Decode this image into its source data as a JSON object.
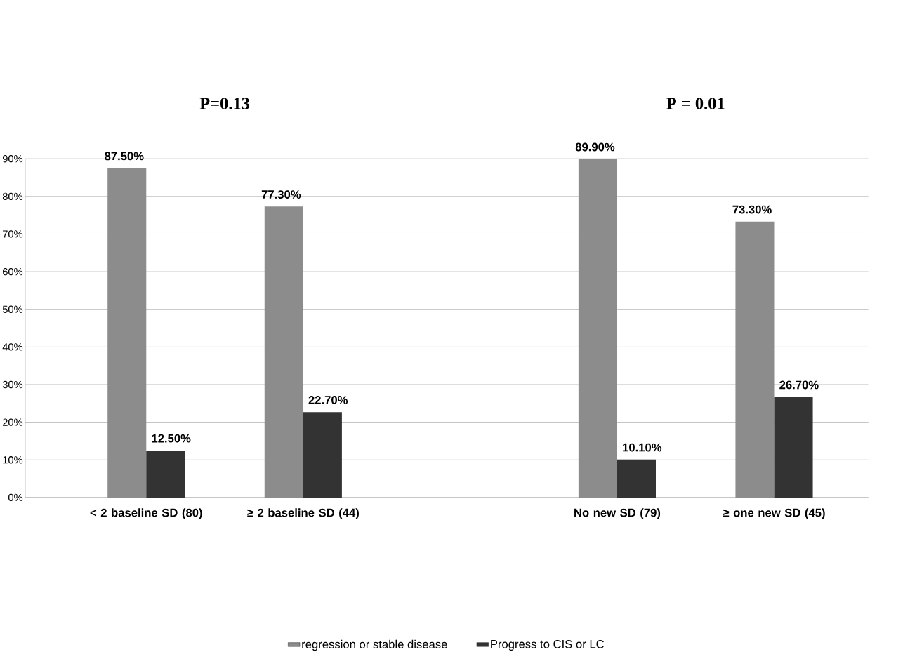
{
  "chart_data": {
    "type": "bar",
    "categories": [
      "< 2 baseline SD (80)",
      "≥ 2 baseline SD (44)",
      null,
      "No new SD (79)",
      "≥ one new SD (45)"
    ],
    "series": [
      {
        "name": "regression or stable disease",
        "color": "#8c8c8c",
        "values": [
          87.5,
          77.3,
          null,
          89.9,
          73.3
        ],
        "value_labels": [
          "87.50%",
          "77.30%",
          null,
          "89.90%",
          "73.30%"
        ]
      },
      {
        "name": "Progress to CIS or LC",
        "color": "#333333",
        "values": [
          12.5,
          22.7,
          null,
          10.1,
          26.7
        ],
        "value_labels": [
          "12.50%",
          "22.70%",
          null,
          "10.10%",
          "26.70%"
        ]
      }
    ],
    "ylim": [
      0,
      90
    ],
    "yticks": [
      {
        "value": 0,
        "label": "0%"
      },
      {
        "value": 10,
        "label": "10%"
      },
      {
        "value": 20,
        "label": "20%"
      },
      {
        "value": 30,
        "label": "30%"
      },
      {
        "value": 40,
        "label": "40%"
      },
      {
        "value": 50,
        "label": "50%"
      },
      {
        "value": 60,
        "label": "60%"
      },
      {
        "value": 70,
        "label": "70%"
      },
      {
        "value": 80,
        "label": "80%"
      },
      {
        "value": 90,
        "label": "90%"
      }
    ],
    "grid": "y",
    "legend": "bottom",
    "annotations": [
      "P=0.13",
      "P = 0.01"
    ]
  }
}
